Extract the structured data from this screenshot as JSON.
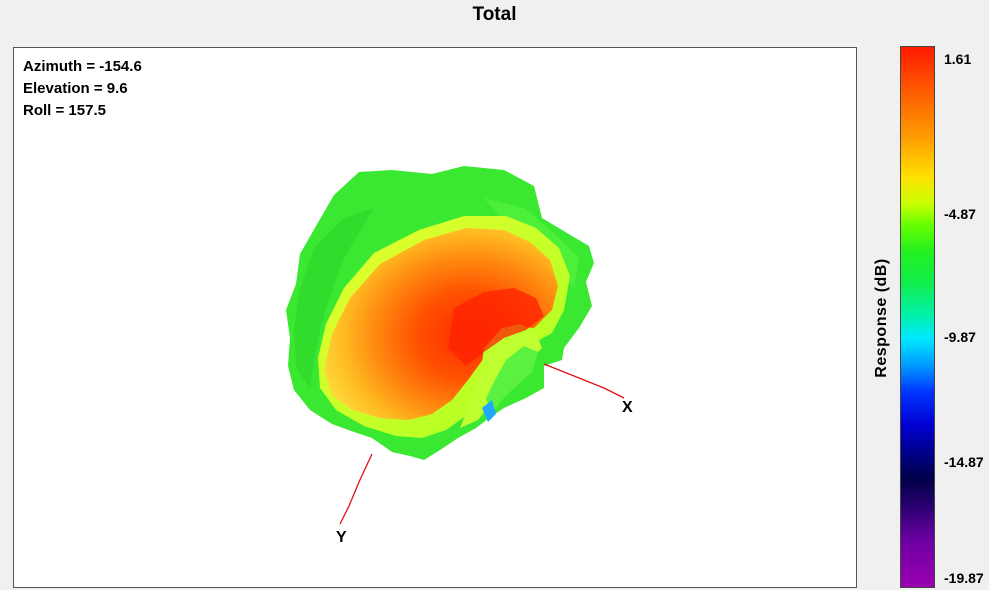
{
  "window": {
    "title": "Total"
  },
  "orientation": {
    "azimuth": "Azimuth = -154.6",
    "elevation": "Elevation = 9.6",
    "roll": "Roll = 157.5"
  },
  "axes": {
    "x_label": "X",
    "y_label": "Y"
  },
  "colorbar": {
    "label": "Response  (dB)",
    "ticks": [
      "1.61",
      "-4.87",
      "-9.87",
      "-14.87",
      "-19.87"
    ],
    "colors": {
      "max": "#ff1a00",
      "mid": "#22f020",
      "cyan": "#00e8ff",
      "blue": "#0000d0",
      "min": "#9a00b0"
    }
  },
  "chart_data": {
    "type": "heatmap",
    "title": "Total",
    "description": "3D antenna radiation pattern surface colored by response",
    "colorbar_label": "Response  (dB)",
    "colorbar_range": [
      -19.87,
      1.61
    ],
    "colorbar_ticks": [
      1.61,
      -4.87,
      -9.87,
      -14.87,
      -19.87
    ],
    "view": {
      "azimuth": -154.6,
      "elevation": 9.6,
      "roll": 157.5
    },
    "axes_shown": [
      "X",
      "Y"
    ]
  }
}
